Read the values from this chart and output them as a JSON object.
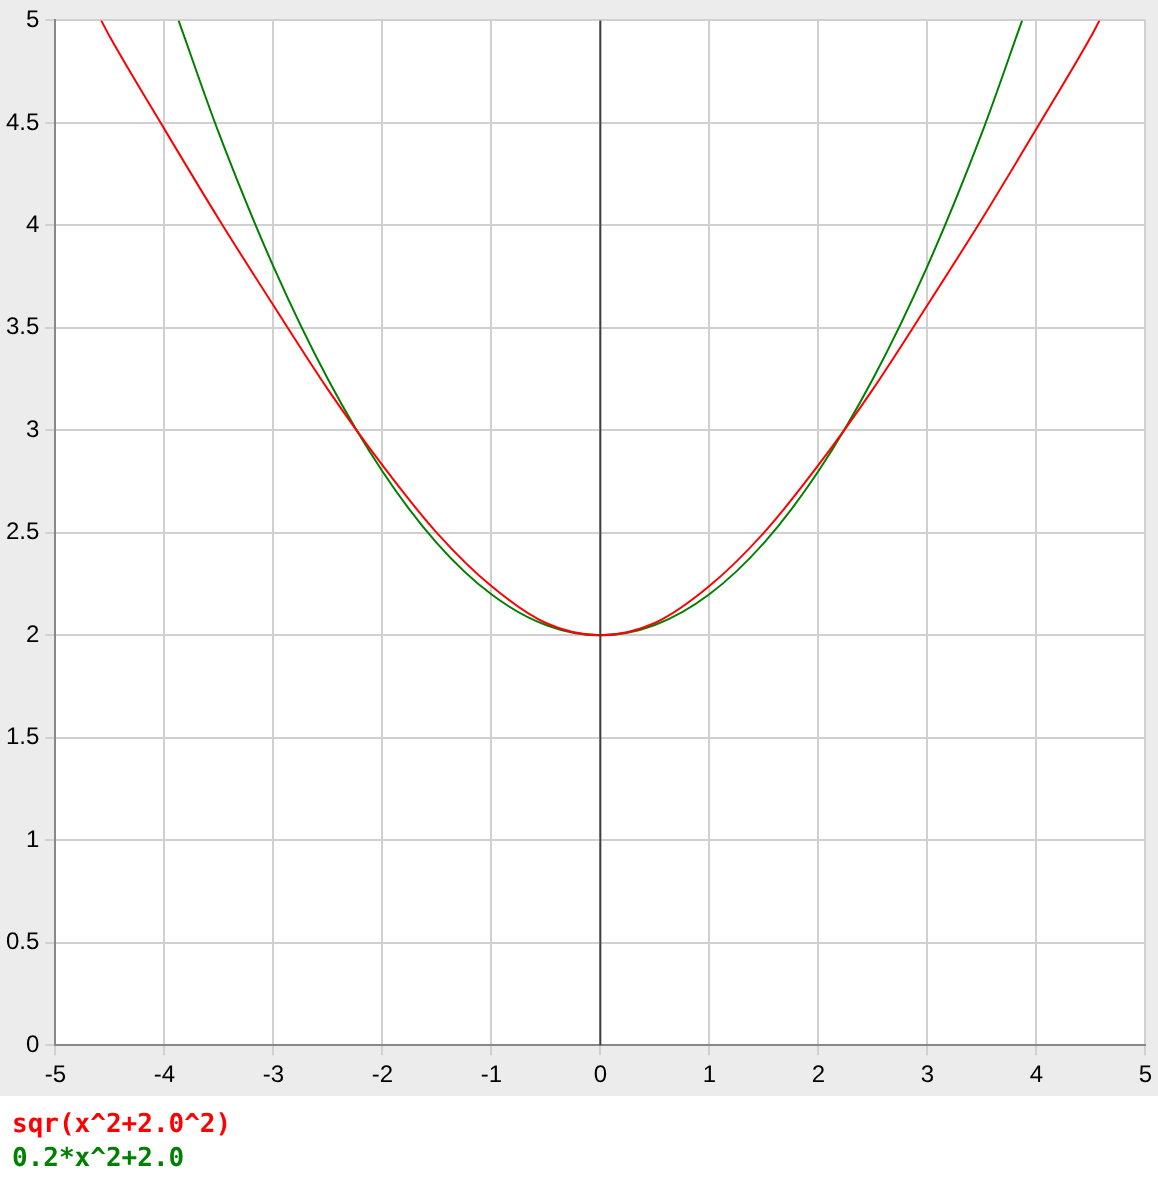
{
  "chart_data": {
    "type": "line",
    "xlim": [
      -5,
      5
    ],
    "ylim": [
      0,
      5
    ],
    "xticks": [
      -5,
      -4,
      -3,
      -2,
      -1,
      0,
      1,
      2,
      3,
      4,
      5
    ],
    "yticks": [
      0,
      0.5,
      1,
      1.5,
      2,
      2.5,
      3,
      3.5,
      4,
      4.5,
      5
    ],
    "grid": true,
    "legend": "bottom left",
    "marker": "none",
    "line_style": "solid",
    "ref_lines": [
      {
        "axis": "x",
        "value": 0,
        "color": "#404040"
      }
    ],
    "series": [
      {
        "name": "sqr(x^2+2.0^2)",
        "color": "#ff0000",
        "x": [
          -4.58,
          -4.5,
          -4,
          -3.5,
          -3,
          -2.5,
          -2,
          -1.5,
          -1,
          -0.5,
          0,
          0.5,
          1,
          1.5,
          2,
          2.5,
          3,
          3.5,
          4,
          4.5,
          4.58
        ],
        "values": [
          5,
          4.92,
          4.47,
          4.03,
          3.61,
          3.2,
          2.83,
          2.5,
          2.24,
          2.06,
          2,
          2.06,
          2.24,
          2.5,
          2.83,
          3.2,
          3.61,
          4.03,
          4.47,
          4.92,
          5
        ]
      },
      {
        "name": "0.2*x^2+2.0",
        "color": "#008000",
        "x": [
          -3.87,
          -3.5,
          -3,
          -2.5,
          -2,
          -1.5,
          -1,
          -0.5,
          0,
          0.5,
          1,
          1.5,
          2,
          2.5,
          3,
          3.5,
          3.87
        ],
        "values": [
          5,
          4.45,
          3.8,
          3.25,
          2.8,
          2.45,
          2.2,
          2.05,
          2,
          2.05,
          2.2,
          2.45,
          2.8,
          3.25,
          3.8,
          4.45,
          5
        ]
      }
    ]
  }
}
